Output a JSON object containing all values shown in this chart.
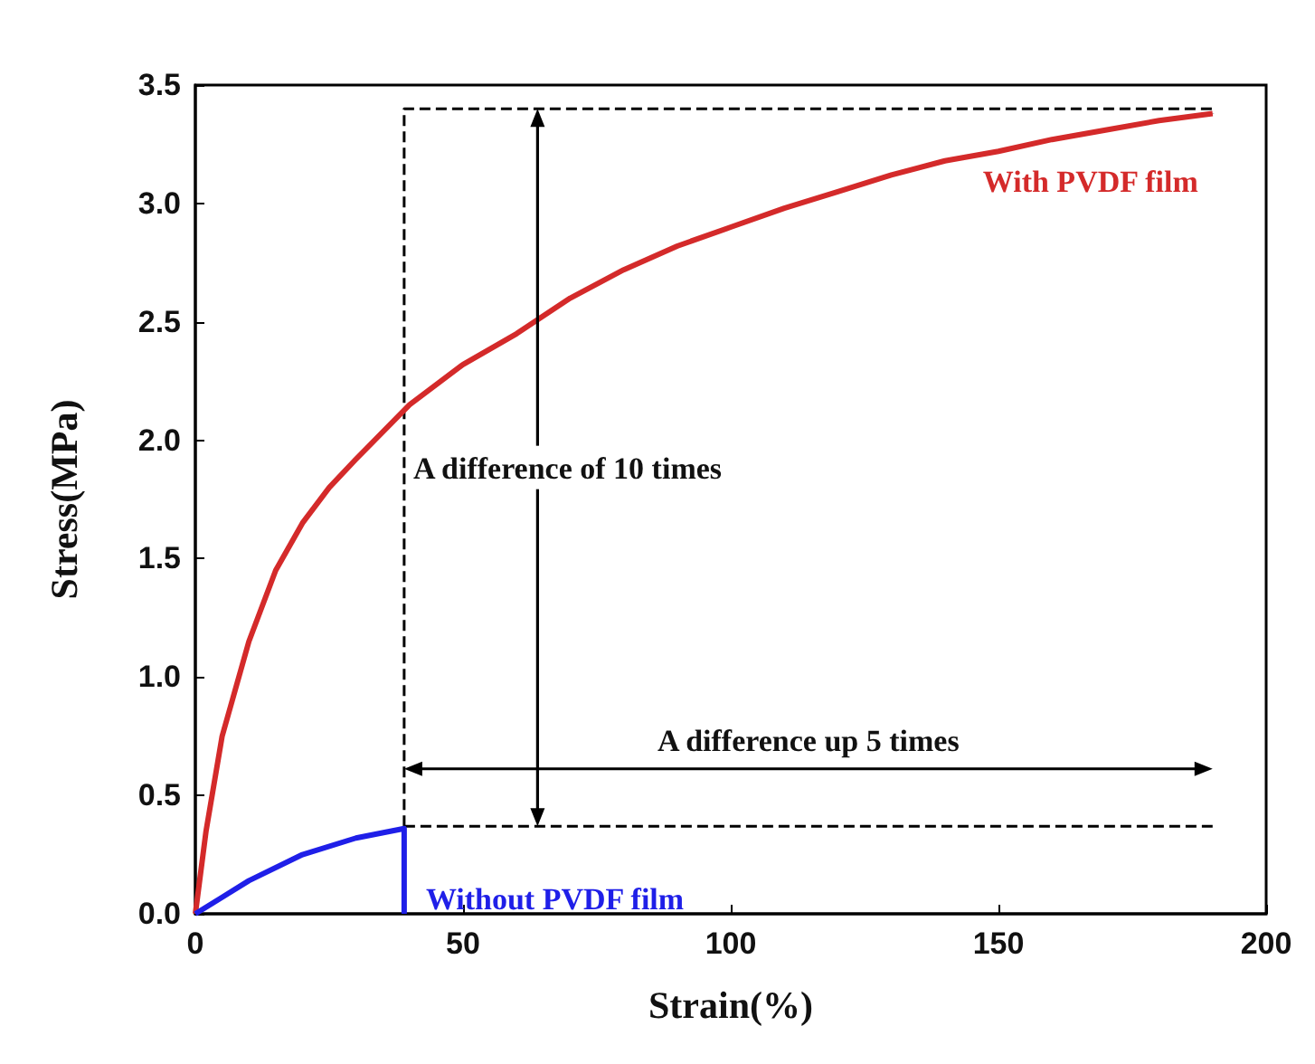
{
  "chart_data": {
    "type": "line",
    "xlabel": "Strain(%)",
    "ylabel": "Stress(MPa)",
    "xlim": [
      0,
      200
    ],
    "xticks": [
      0,
      50,
      100,
      150,
      200
    ],
    "ylim": [
      0,
      3.5
    ],
    "yticks": [
      {
        "value": 0,
        "label": "0.0"
      },
      0.5,
      {
        "value": 1,
        "label": "1.0"
      },
      1.5,
      {
        "value": 2,
        "label": "2.0"
      },
      2.5,
      {
        "value": 3,
        "label": "3.0"
      },
      3.5
    ],
    "grid": false,
    "legend": false,
    "marker": "none",
    "series": [
      {
        "name": "With PVDF film",
        "color": "#d42a2a",
        "x": [
          0,
          2,
          5,
          10,
          15,
          20,
          25,
          30,
          40,
          50,
          60,
          70,
          80,
          90,
          100,
          110,
          120,
          130,
          140,
          150,
          160,
          170,
          180,
          190
        ],
        "values": [
          0,
          0.35,
          0.75,
          1.15,
          1.45,
          1.65,
          1.8,
          1.92,
          2.15,
          2.32,
          2.45,
          2.6,
          2.72,
          2.82,
          2.9,
          2.98,
          3.05,
          3.12,
          3.18,
          3.22,
          3.27,
          3.31,
          3.35,
          3.38
        ]
      },
      {
        "name": "Without PVDF film",
        "color": "#1f1fe8",
        "x": [
          0,
          5,
          10,
          20,
          30,
          39,
          39
        ],
        "values": [
          0,
          0.07,
          0.14,
          0.25,
          0.32,
          0.36,
          0
        ]
      },
      {
        "color": "#000000",
        "line_style": "dashed",
        "x": [
          39,
          39,
          190,
          190
        ],
        "values": [
          0.37,
          3.4,
          3.4,
          3.38
        ]
      },
      {
        "color": "#000000",
        "line_style": "dashed",
        "x": [
          39,
          190
        ],
        "values": [
          0.37,
          0.37
        ]
      }
    ],
    "annotations": [
      "A difference of 10 times",
      "A difference up 5 times"
    ]
  }
}
